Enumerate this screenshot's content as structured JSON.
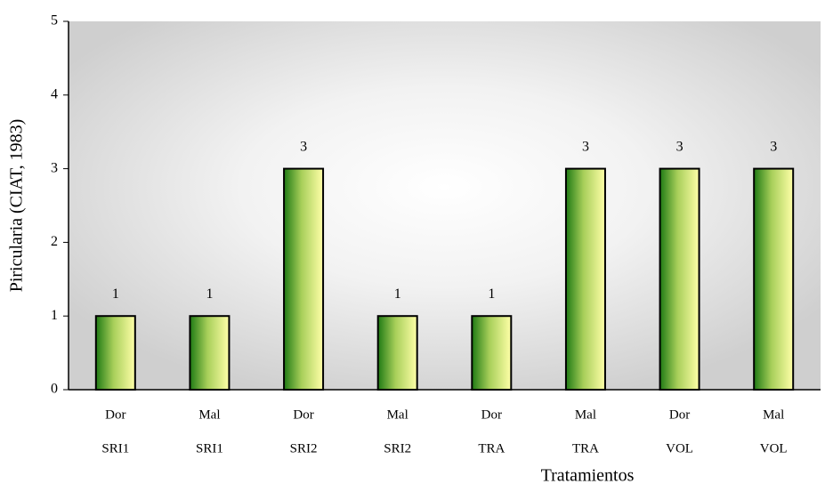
{
  "chart_data": {
    "type": "bar",
    "xlabel": "Tratamientos",
    "ylabel": "Piricularia (CIAT, 1983)",
    "categories": [
      [
        "Dor",
        "SRI1"
      ],
      [
        "Mal",
        "SRI1"
      ],
      [
        "Dor",
        "SRI2"
      ],
      [
        "Mal",
        "SRI2"
      ],
      [
        "Dor",
        "TRA"
      ],
      [
        "Mal",
        "TRA"
      ],
      [
        "Dor",
        "VOL"
      ],
      [
        "Mal",
        "VOL"
      ]
    ],
    "values": [
      1,
      1,
      3,
      1,
      1,
      3,
      3,
      3
    ],
    "ylim": [
      0,
      5
    ],
    "yticks": [
      0,
      1,
      2,
      3,
      4,
      5
    ],
    "grid": false,
    "color": "#2e8b1e"
  }
}
